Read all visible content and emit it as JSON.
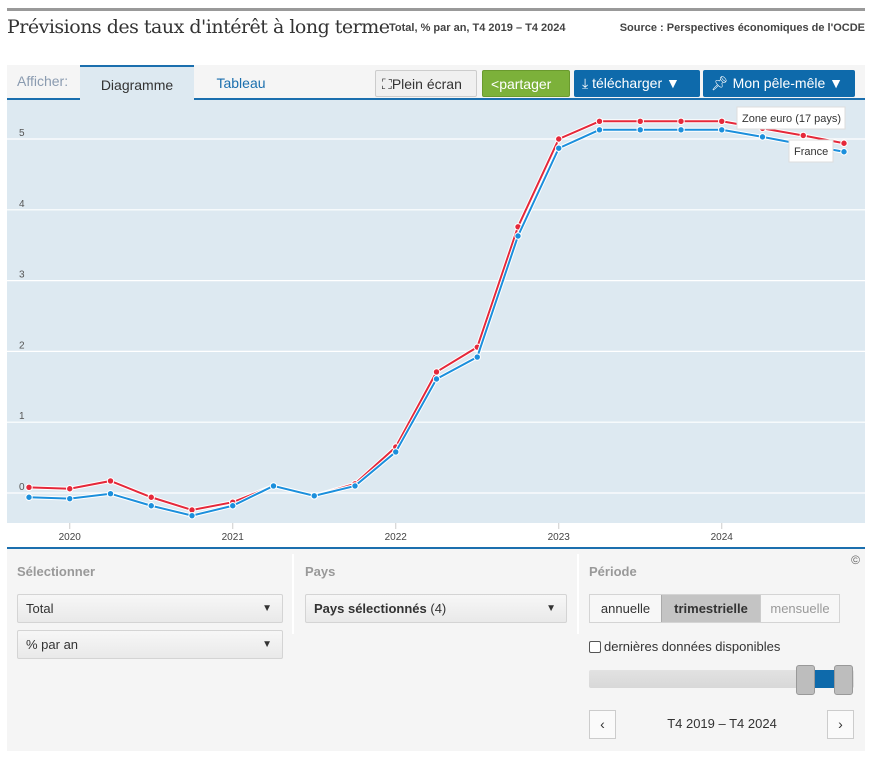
{
  "header": {
    "title": "Prévisions des taux d'intérêt à long terme",
    "subtitle": "Total, % par an, T4 2019 – T4 2024",
    "source": "Source : Perspectives économiques de l'OCDE"
  },
  "toolbar": {
    "show_label": "Afficher:",
    "tabs": [
      "Diagramme",
      "Tableau"
    ],
    "fullscreen": "Plein écran",
    "share": "partager",
    "download": "télécharger ▼",
    "pinboard": "Mon pêle-mêle ▼"
  },
  "chart_data": {
    "type": "line",
    "title": "Prévisions des taux d'intérêt à long terme",
    "xlabel": "",
    "ylabel": "% par an",
    "x": [
      "T4 2019",
      "T1 2020",
      "T2 2020",
      "T3 2020",
      "T4 2020",
      "T1 2021",
      "T2 2021",
      "T3 2021",
      "T4 2021",
      "T1 2022",
      "T2 2022",
      "T3 2022",
      "T4 2022",
      "T1 2023",
      "T2 2023",
      "T3 2023",
      "T4 2023",
      "T1 2024",
      "T2 2024",
      "T3 2024",
      "T4 2024"
    ],
    "x_tick_labels": [
      "2020",
      "2021",
      "2022",
      "2023",
      "2024"
    ],
    "y_ticks": [
      0,
      1,
      2,
      3,
      4,
      5
    ],
    "ylim": [
      -0.42,
      5.5
    ],
    "grid": true,
    "series": [
      {
        "name": "Zone euro (17 pays)",
        "color": "#e5283a",
        "values": [
          0.08,
          0.06,
          0.17,
          -0.06,
          -0.24,
          -0.13,
          0.1,
          -0.04,
          0.13,
          0.65,
          1.71,
          2.06,
          3.76,
          5.0,
          5.25,
          5.25,
          5.25,
          5.25,
          5.15,
          5.05,
          4.94
        ]
      },
      {
        "name": "France",
        "color": "#1b8fdc",
        "values": [
          -0.06,
          -0.08,
          -0.01,
          -0.18,
          -0.32,
          -0.18,
          0.1,
          -0.04,
          0.1,
          0.58,
          1.61,
          1.92,
          3.63,
          4.87,
          5.13,
          5.13,
          5.13,
          5.13,
          5.03,
          4.92,
          4.82
        ]
      }
    ]
  },
  "panel": {
    "select_label": "Sélectionner",
    "select_value": "Total",
    "unit_value": "% par an",
    "country_label": "Pays",
    "country_value": "Pays sélectionnés",
    "country_count": "(4)",
    "period_label": "Période",
    "period_options": [
      "annuelle",
      "trimestrielle",
      "mensuelle"
    ],
    "latest_label": "dernières données disponibles",
    "range": "T4 2019 – T4 2024",
    "copyright": "©",
    "arrow": "▼",
    "prev": "‹",
    "next": "›"
  }
}
